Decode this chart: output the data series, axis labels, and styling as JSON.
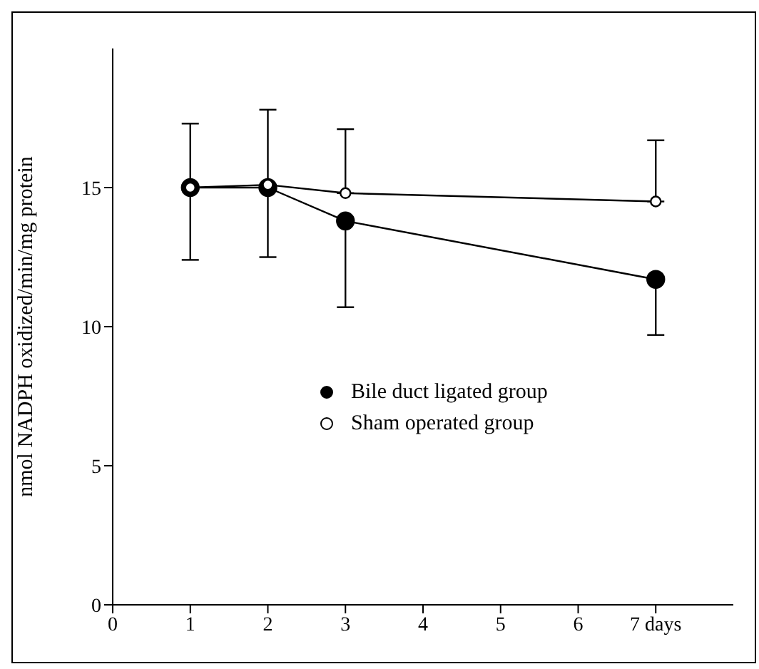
{
  "chart_data": {
    "type": "line",
    "ylabel": "nmol NADPH oxidized/min/mg protein",
    "x": [
      1,
      2,
      3,
      7
    ],
    "series": [
      {
        "name": "Bile duct ligated group",
        "color": "#000000",
        "values": [
          15.0,
          15.0,
          13.8,
          11.7
        ],
        "errors": [
          [
            12.4,
            15.0
          ],
          [
            12.5,
            15.0
          ],
          [
            10.7,
            13.8
          ],
          [
            9.7,
            11.7
          ]
        ]
      },
      {
        "name": "Sham operated group",
        "color": "#000000",
        "marker": "open circle",
        "values": [
          15.0,
          15.1,
          14.8,
          14.5
        ],
        "errors": [
          [
            15.0,
            17.3
          ],
          [
            15.1,
            17.8
          ],
          [
            14.8,
            17.1
          ],
          [
            14.5,
            16.7
          ]
        ]
      }
    ],
    "xlim": [
      0,
      8
    ],
    "xticks": [
      0,
      1,
      2,
      3,
      4,
      5,
      6,
      {
        "value": 7,
        "label": "7 days"
      }
    ],
    "ylim": [
      0,
      20
    ],
    "yticks": [
      0,
      5,
      10,
      15
    ],
    "marker": "circle",
    "line_style": "solid",
    "grid": false,
    "legend": "right"
  }
}
